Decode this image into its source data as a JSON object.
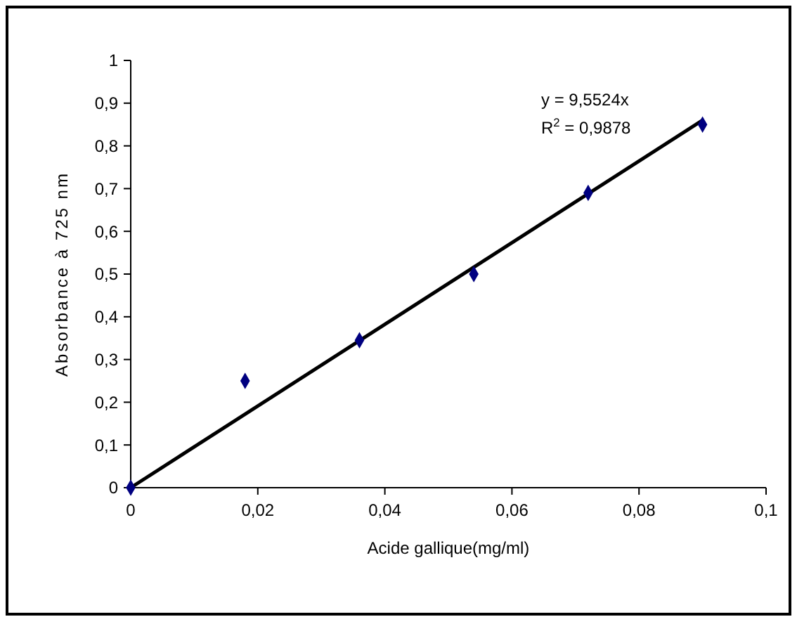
{
  "chart_data": {
    "type": "scatter",
    "xlabel": "Acide gallique(mg/ml)",
    "ylabel": "Absorbance à 725 nm",
    "annotations": [
      "y = 9,5524x",
      "R$^{2}$ = 0,9878"
    ],
    "series": [
      {
        "color": "#000080",
        "marker": "diamond",
        "x": [
          0,
          0.018,
          0.036,
          0.054,
          0.072,
          0.09
        ],
        "values": [
          0,
          0.25,
          0.345,
          0.5,
          0.69,
          0.85
        ]
      },
      {
        "type": "line",
        "color": "#000000",
        "marker": "none",
        "line_style": "solid",
        "x": [
          0,
          0.09
        ],
        "values": [
          0,
          0.86
        ]
      }
    ],
    "xlim": [
      0,
      0.1
    ],
    "xticks": [
      0,
      {
        "value": 0.02,
        "label": "0,02"
      },
      {
        "value": 0.04,
        "label": "0,04"
      },
      {
        "value": 0.06,
        "label": "0,06"
      },
      {
        "value": 0.08,
        "label": "0,08"
      },
      {
        "value": 0.1,
        "label": "0,1"
      }
    ],
    "ylim": [
      0,
      1
    ],
    "yticks": [
      0,
      {
        "value": 0.1,
        "label": "0,1"
      },
      {
        "value": 0.2,
        "label": "0,2"
      },
      {
        "value": 0.3,
        "label": "0,3"
      },
      {
        "value": 0.4,
        "label": "0,4"
      },
      {
        "value": 0.5,
        "label": "0,5"
      },
      {
        "value": 0.6,
        "label": "0,6"
      },
      {
        "value": 0.7,
        "label": "0,7"
      },
      {
        "value": 0.8,
        "label": "0,8"
      },
      {
        "value": 0.9,
        "label": "0,9"
      },
      1
    ],
    "grid": false
  }
}
